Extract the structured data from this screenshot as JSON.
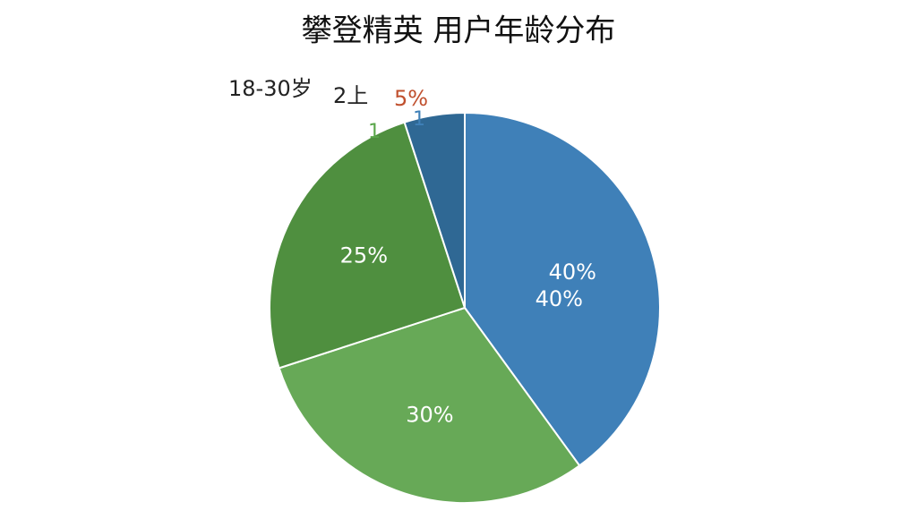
{
  "chart_data": {
    "type": "pie",
    "title": "攀登精英 用户年龄分布",
    "values": [
      40,
      30,
      25,
      5
    ],
    "value_labels": [
      "40%",
      "30%",
      "25%",
      "5%"
    ],
    "colors": [
      "#3f80b8",
      "#67a957",
      "#4f8f3f",
      "#2f6894"
    ],
    "label_colors": [
      "#ffffff",
      "#ffffff",
      "#ffffff",
      "#c0502e"
    ],
    "annotations": [
      {
        "text": "40%",
        "color": "#ffffff"
      },
      {
        "text": "18-30岁",
        "color": "#222222"
      },
      {
        "text": "2上",
        "color": "#222222"
      },
      {
        "text": "1",
        "color": "#5aa64a"
      },
      {
        "text": "1",
        "color": "#3f80b8"
      }
    ]
  }
}
